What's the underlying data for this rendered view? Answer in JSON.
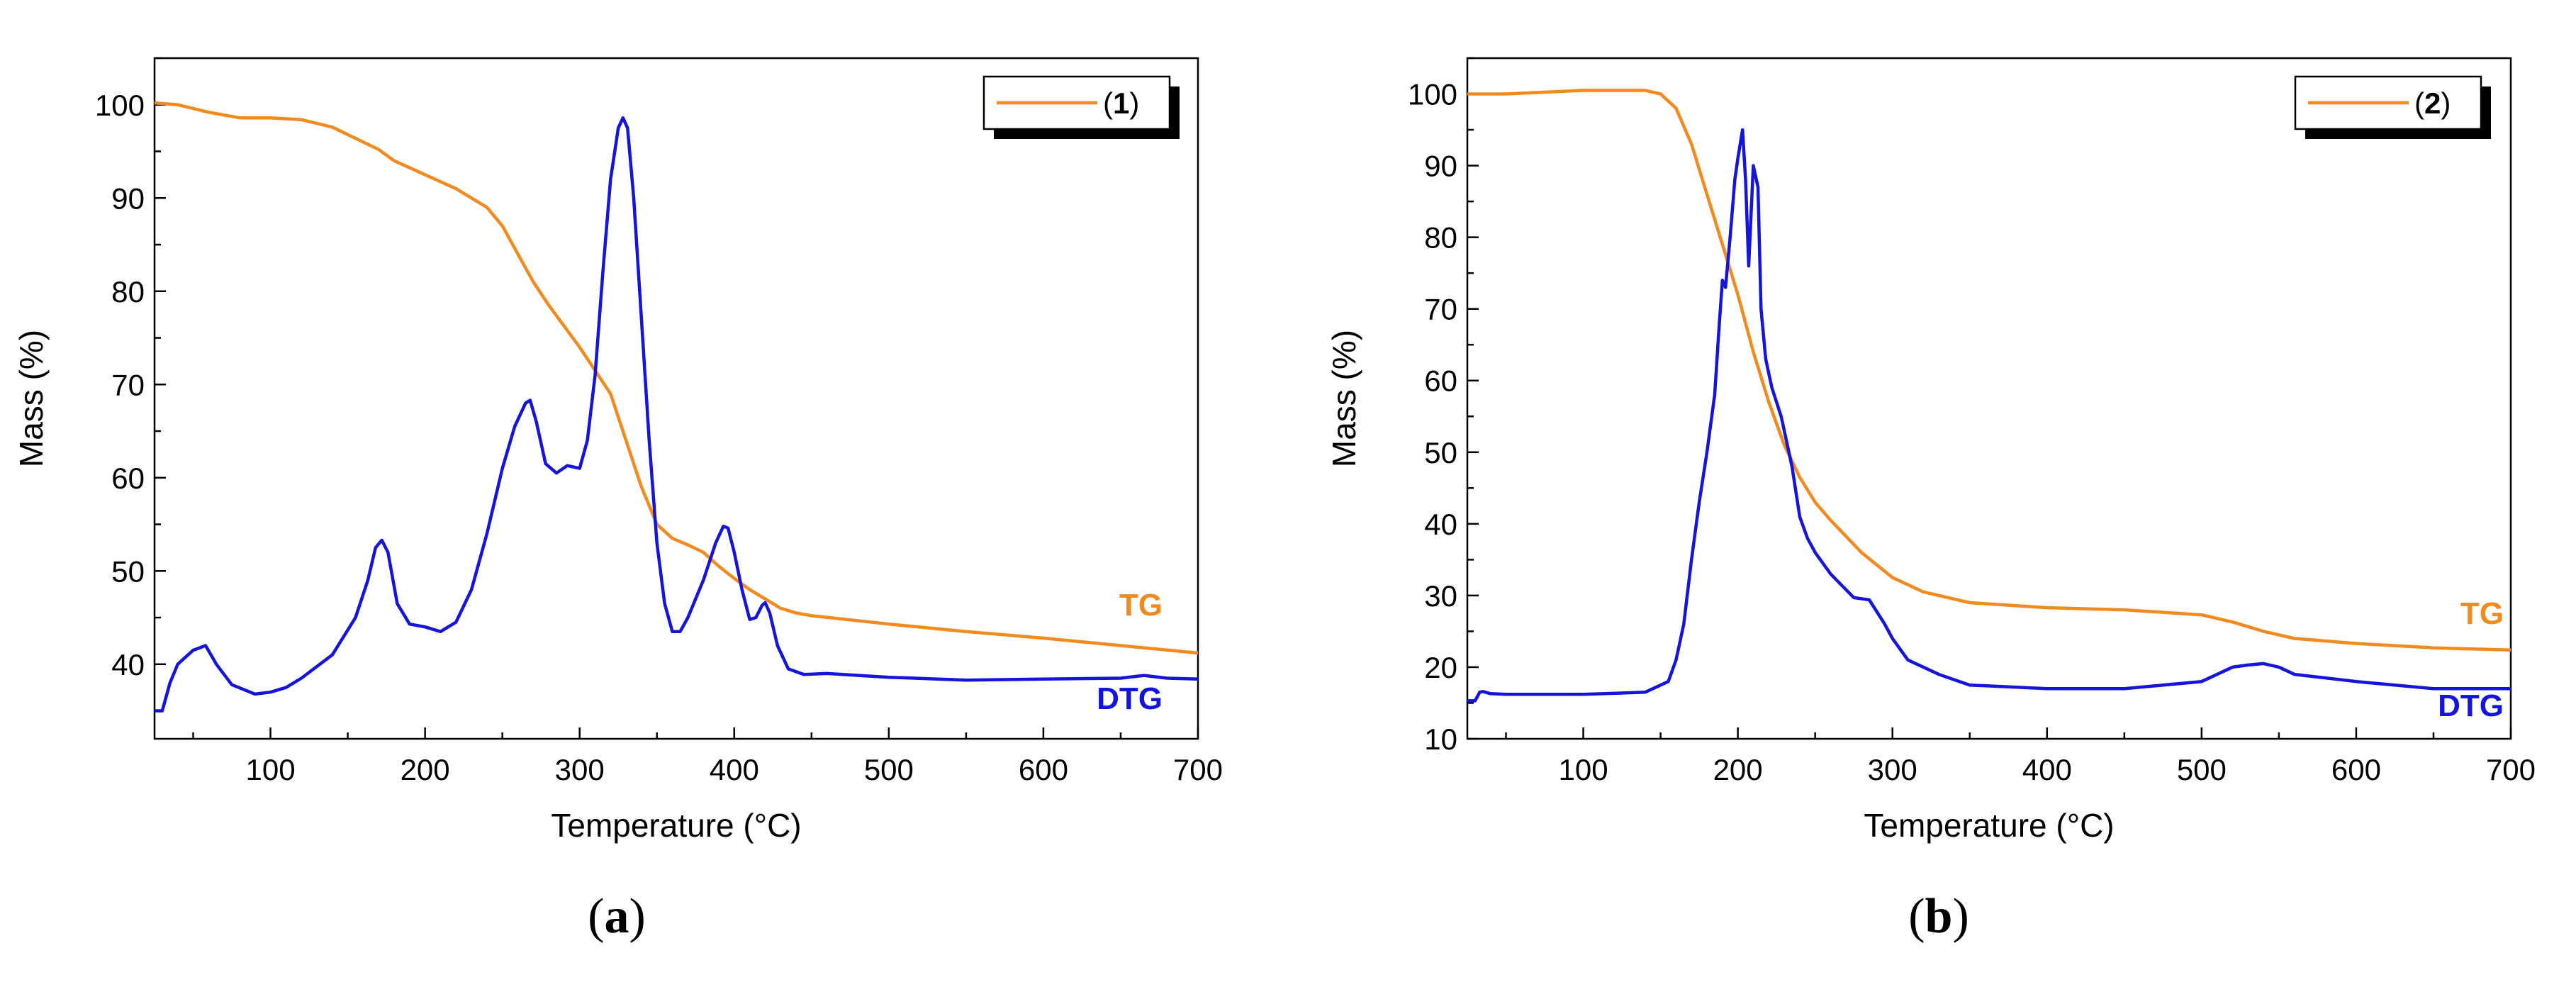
{
  "chart_data": [
    {
      "panel": "a",
      "type": "line",
      "caption": "(a)",
      "caption_letter": "a",
      "legend_label": "(1)",
      "legend_number": "1",
      "xlabel": "Temperature (°C)",
      "ylabel": "Mass (%)",
      "xlim": [
        25,
        700
      ],
      "ylim": [
        32,
        105
      ],
      "x_ticks": [
        100,
        200,
        300,
        400,
        500,
        600,
        700
      ],
      "y_ticks": [
        40,
        50,
        60,
        70,
        80,
        90,
        100
      ],
      "series": [
        {
          "name": "TG",
          "color": "#f28a1e",
          "x": [
            25,
            40,
            60,
            80,
            100,
            120,
            140,
            160,
            170,
            180,
            200,
            220,
            240,
            250,
            260,
            270,
            280,
            300,
            320,
            330,
            340,
            350,
            360,
            370,
            380,
            390,
            400,
            410,
            420,
            430,
            440,
            450,
            500,
            550,
            600,
            650,
            700
          ],
          "y": [
            100.2,
            100,
            99.2,
            98.6,
            98.6,
            98.4,
            97.6,
            96,
            95.2,
            94,
            92.5,
            91,
            89,
            87,
            84,
            81,
            78.5,
            74,
            69,
            64,
            59,
            55,
            53.5,
            52.8,
            52,
            50.5,
            49.2,
            48,
            47,
            46,
            45.5,
            45.2,
            44.3,
            43.5,
            42.8,
            42,
            41.2
          ]
        },
        {
          "name": "DTG",
          "color": "#1414dc",
          "x": [
            25,
            30,
            35,
            40,
            50,
            58,
            65,
            75,
            90,
            100,
            110,
            120,
            140,
            155,
            163,
            168,
            172,
            176,
            182,
            190,
            200,
            210,
            220,
            230,
            240,
            250,
            258,
            265,
            268,
            272,
            278,
            285,
            292,
            300,
            305,
            310,
            315,
            320,
            325,
            328,
            331,
            335,
            340,
            345,
            350,
            355,
            360,
            365,
            370,
            380,
            388,
            393,
            396,
            400,
            405,
            410,
            414,
            418,
            420,
            423,
            428,
            435,
            445,
            460,
            500,
            550,
            600,
            650,
            665,
            680,
            700
          ],
          "y": [
            35,
            35,
            38,
            40,
            41.5,
            42,
            40,
            37.8,
            36.8,
            37,
            37.5,
            38.5,
            41,
            45,
            49,
            52.5,
            53.3,
            52,
            46.5,
            44.3,
            44,
            43.5,
            44.5,
            48,
            54,
            61,
            65.5,
            68,
            68.3,
            66,
            61.5,
            60.5,
            61.3,
            61,
            64,
            71,
            82,
            92,
            97.5,
            98.6,
            97.5,
            90,
            77,
            64,
            53,
            46.5,
            43.5,
            43.5,
            45,
            49,
            53,
            54.8,
            54.6,
            52,
            48,
            44.8,
            45,
            46.3,
            46.6,
            45.5,
            42,
            39.5,
            38.9,
            39,
            38.6,
            38.3,
            38.4,
            38.5,
            38.8,
            38.5,
            38.4
          ]
        }
      ],
      "annotations": [
        "TG",
        "DTG"
      ]
    },
    {
      "panel": "b",
      "type": "line",
      "caption": "(b)",
      "caption_letter": "b",
      "legend_label": "(2)",
      "legend_number": "2",
      "xlabel": "Temperature (°C)",
      "ylabel": "Mass (%)",
      "xlim": [
        25,
        700
      ],
      "ylim": [
        10,
        105
      ],
      "x_ticks": [
        100,
        200,
        300,
        400,
        500,
        600,
        700
      ],
      "y_ticks": [
        10,
        20,
        30,
        40,
        50,
        60,
        70,
        80,
        90,
        100
      ],
      "series": [
        {
          "name": "TG",
          "color": "#f28a1e",
          "x": [
            25,
            50,
            100,
            140,
            150,
            160,
            170,
            180,
            190,
            200,
            210,
            220,
            230,
            240,
            250,
            260,
            280,
            300,
            320,
            350,
            400,
            450,
            500,
            520,
            540,
            560,
            600,
            650,
            700
          ],
          "y": [
            100,
            100,
            100.5,
            100.5,
            100,
            98,
            93,
            86,
            79,
            72,
            64,
            57,
            51,
            46.5,
            43,
            40.5,
            36,
            32.5,
            30.5,
            29,
            28.3,
            28,
            27.3,
            26.3,
            25,
            24,
            23.3,
            22.7,
            22.4
          ]
        },
        {
          "name": "DTG",
          "color": "#1414dc",
          "x": [
            25,
            30,
            33,
            35,
            40,
            50,
            100,
            140,
            155,
            160,
            165,
            170,
            175,
            180,
            185,
            188,
            190,
            192,
            195,
            198,
            200,
            203,
            205,
            207,
            210,
            213,
            215,
            218,
            222,
            228,
            235,
            240,
            245,
            250,
            260,
            275,
            285,
            295,
            300,
            310,
            330,
            350,
            400,
            450,
            500,
            510,
            520,
            530,
            540,
            550,
            560,
            600,
            650,
            700
          ],
          "y": [
            15.3,
            15.3,
            16.5,
            16.6,
            16.3,
            16.2,
            16.2,
            16.5,
            18,
            21,
            26,
            35,
            43,
            50,
            58,
            68,
            74,
            73,
            80,
            88,
            91,
            95,
            88,
            76,
            90,
            87,
            70,
            63,
            59,
            55,
            48,
            41,
            38,
            36,
            33,
            29.7,
            29.4,
            26,
            24,
            21,
            19,
            17.5,
            17,
            17,
            18,
            19,
            20,
            20.3,
            20.5,
            20,
            19,
            18,
            17,
            17
          ]
        }
      ],
      "annotations": [
        "TG",
        "DTG"
      ]
    }
  ]
}
